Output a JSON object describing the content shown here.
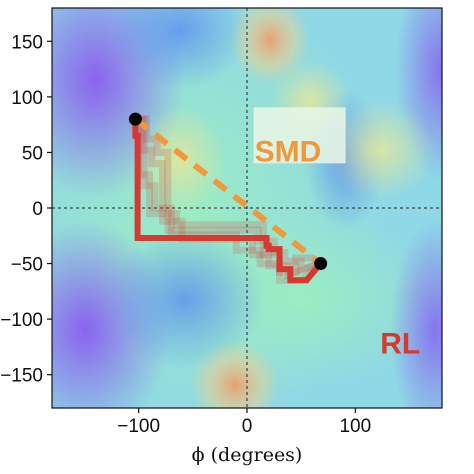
{
  "colors": {
    "smd": "#f0983a",
    "rl": "#d5392f",
    "endpoint": "#000000",
    "guide": "#222222",
    "smd_label_box": "#eaf7e6"
  },
  "chart_data": {
    "type": "scatter",
    "background": "Ramachandran-style free energy surface, colormap rainbow (purple-blue low, green-yellow mid, orange-red high)",
    "xlabel": "ϕ (degrees)",
    "ylabel": "",
    "xlim": [
      -180,
      180
    ],
    "ylim": [
      -180,
      180
    ],
    "x_ticks": [
      -100,
      0,
      100
    ],
    "x_tick_labels": [
      "−100",
      "0",
      "100"
    ],
    "y_ticks": [
      150,
      100,
      50,
      0,
      -50,
      -100,
      -150
    ],
    "y_tick_labels": [
      "150",
      "100",
      "50",
      "0",
      "−50",
      "−100",
      "−150"
    ],
    "guides": {
      "x": 0,
      "y": 0,
      "style": "dotted"
    },
    "annotations": [
      {
        "text": "SMD",
        "x": 7,
        "y": 42
      },
      {
        "text": "RL",
        "x": 123,
        "y": -131
      }
    ],
    "endpoints": [
      {
        "x": -103,
        "y": 80
      },
      {
        "x": 68,
        "y": -50
      }
    ],
    "series": [
      {
        "name": "SMD",
        "style": "dashed",
        "points": [
          [
            -103,
            80
          ],
          [
            68,
            -50
          ]
        ]
      },
      {
        "name": "RL",
        "style": "step",
        "points": [
          [
            -103,
            80
          ],
          [
            -103,
            65
          ],
          [
            -101,
            65
          ],
          [
            -101,
            -27
          ],
          [
            -88,
            -27
          ],
          [
            -88,
            -27
          ],
          [
            18,
            -27
          ],
          [
            18,
            -34
          ],
          [
            20,
            -34
          ],
          [
            20,
            -37
          ],
          [
            30,
            -37
          ],
          [
            30,
            -55
          ],
          [
            40,
            -55
          ],
          [
            40,
            -65
          ],
          [
            55,
            -65
          ],
          [
            68,
            -50
          ]
        ]
      }
    ],
    "rl_ghost_trajectories": [
      [
        [
          -103,
          80
        ],
        [
          -93,
          80
        ],
        [
          -93,
          62
        ],
        [
          -83,
          62
        ],
        [
          -83,
          50
        ],
        [
          -73,
          50
        ],
        [
          -73,
          -20
        ],
        [
          10,
          -20
        ],
        [
          10,
          -30
        ],
        [
          25,
          -30
        ],
        [
          25,
          -40
        ],
        [
          35,
          -40
        ],
        [
          35,
          -48
        ],
        [
          50,
          -48
        ],
        [
          50,
          -55
        ],
        [
          68,
          -50
        ]
      ],
      [
        [
          -103,
          80
        ],
        [
          -97,
          80
        ],
        [
          -97,
          52
        ],
        [
          -88,
          52
        ],
        [
          -88,
          40
        ],
        [
          -78,
          40
        ],
        [
          -78,
          -12
        ],
        [
          -60,
          -12
        ],
        [
          -60,
          -28
        ],
        [
          5,
          -28
        ],
        [
          5,
          -42
        ],
        [
          20,
          -42
        ],
        [
          20,
          -52
        ],
        [
          38,
          -52
        ],
        [
          38,
          -60
        ],
        [
          68,
          -50
        ]
      ],
      [
        [
          -103,
          80
        ],
        [
          -100,
          80
        ],
        [
          -100,
          30
        ],
        [
          -90,
          30
        ],
        [
          -90,
          -5
        ],
        [
          -65,
          -5
        ],
        [
          -65,
          -15
        ],
        [
          15,
          -15
        ],
        [
          15,
          -42
        ],
        [
          30,
          -42
        ],
        [
          30,
          -58
        ],
        [
          45,
          -58
        ],
        [
          45,
          -45
        ],
        [
          60,
          -45
        ],
        [
          68,
          -50
        ]
      ],
      [
        [
          -103,
          80
        ],
        [
          -95,
          80
        ],
        [
          -95,
          20
        ],
        [
          -85,
          20
        ],
        [
          -85,
          0
        ],
        [
          -70,
          0
        ],
        [
          -70,
          -24
        ],
        [
          -10,
          -24
        ],
        [
          -10,
          -38
        ],
        [
          12,
          -38
        ],
        [
          12,
          -50
        ],
        [
          30,
          -50
        ],
        [
          30,
          -65
        ],
        [
          50,
          -65
        ],
        [
          68,
          -50
        ]
      ]
    ]
  }
}
